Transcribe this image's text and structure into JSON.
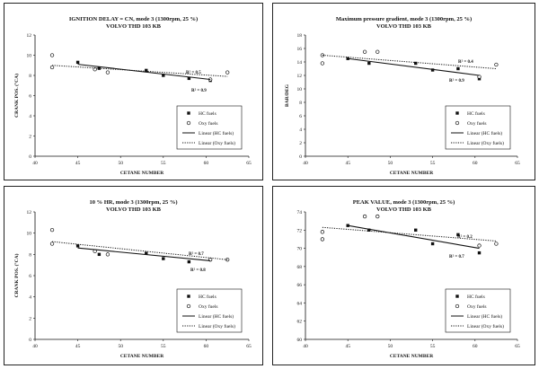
{
  "chart_data": [
    {
      "type": "scatter",
      "title": "IGNITION DELAY = CN, mode 3 (1300rpm, 25 %)",
      "subtitle": "VOLVO THD 103 KB",
      "xlabel": "CETANE NUMBER",
      "ylabel": "CRANK POS. (°CA)",
      "xlim": [
        40,
        65
      ],
      "ylim": [
        0,
        12
      ],
      "xticks": [
        "40",
        "45",
        "50",
        "55",
        "60",
        "65"
      ],
      "yticks": [
        "0",
        "2",
        "4",
        "6",
        "8",
        "10",
        "12"
      ],
      "series": [
        {
          "name": "HC fuels",
          "marker": "square",
          "x": [
            45,
            47.5,
            53,
            55,
            58,
            60.5
          ],
          "y": [
            9.3,
            8.7,
            8.5,
            8.0,
            7.7,
            7.5
          ]
        },
        {
          "name": "Oxy fuels",
          "marker": "circle",
          "x": [
            42,
            42,
            47,
            48.5,
            60.5,
            62.5
          ],
          "y": [
            10,
            8.8,
            8.6,
            8.3,
            7.6,
            8.3
          ]
        },
        {
          "name": "Linear (HC fuels)",
          "style": "solid",
          "x": [
            45,
            60.5
          ],
          "y": [
            9.1,
            7.6
          ]
        },
        {
          "name": "Linear (Oxy fuels)",
          "style": "dotted",
          "x": [
            42,
            62.5
          ],
          "y": [
            9.0,
            7.9
          ]
        }
      ],
      "annotations": [
        "R² = 0.5",
        "R² = 0.9"
      ],
      "legend": "bottom-right"
    },
    {
      "type": "scatter",
      "title": "Maximum pressure gradient, mode 3 (1300rpm, 25 %)",
      "subtitle": "VOLVO THD 103 KB",
      "xlabel": "CETANE NUMBER",
      "ylabel": "BAR/DEG",
      "xlim": [
        40,
        65
      ],
      "ylim": [
        0,
        18
      ],
      "xticks": [
        "40",
        "45",
        "50",
        "55",
        "60",
        "65"
      ],
      "yticks": [
        "0",
        "2",
        "4",
        "6",
        "8",
        "10",
        "12",
        "14",
        "16",
        "18"
      ],
      "series": [
        {
          "name": "HC fuels",
          "marker": "square",
          "x": [
            45,
            47.5,
            53,
            55,
            58,
            60.5
          ],
          "y": [
            14.5,
            13.8,
            13.8,
            12.8,
            13.0,
            11.5
          ]
        },
        {
          "name": "Oxy fuels",
          "marker": "circle",
          "x": [
            42,
            42,
            47,
            48.5,
            60.5,
            62.5
          ],
          "y": [
            15.0,
            13.8,
            15.5,
            15.5,
            11.8,
            13.6
          ]
        },
        {
          "name": "Linear (HC fuels)",
          "style": "solid",
          "x": [
            45,
            60.5
          ],
          "y": [
            14.5,
            12.0
          ]
        },
        {
          "name": "Linear (Oxy fuels)",
          "style": "dotted",
          "x": [
            42,
            62.5
          ],
          "y": [
            15.0,
            13.0
          ]
        }
      ],
      "annotations": [
        "R² = 0.4",
        "R² = 0.9"
      ],
      "legend": "bottom-right"
    },
    {
      "type": "scatter",
      "title": "10 % HR, mode 3 (1300rpm, 25 %)",
      "subtitle": "VOLVO THD 103 KB",
      "xlabel": "CETANE NUMBER",
      "ylabel": "CRANK POS. (°CA)",
      "xlim": [
        40,
        65
      ],
      "ylim": [
        0,
        12
      ],
      "xticks": [
        "40",
        "45",
        "50",
        "55",
        "60",
        "65"
      ],
      "yticks": [
        "0",
        "2",
        "4",
        "6",
        "8",
        "10",
        "12"
      ],
      "series": [
        {
          "name": "HC fuels",
          "marker": "square",
          "x": [
            45,
            47.5,
            53,
            55,
            58,
            60.5
          ],
          "y": [
            8.8,
            8.0,
            8.1,
            7.6,
            7.3,
            7.5
          ]
        },
        {
          "name": "Oxy fuels",
          "marker": "circle",
          "x": [
            42,
            42,
            47,
            48.5,
            60.5,
            62.5
          ],
          "y": [
            10.3,
            9.0,
            8.3,
            8.0,
            7.5,
            7.5
          ]
        },
        {
          "name": "Linear (HC fuels)",
          "style": "solid",
          "x": [
            45,
            60.5
          ],
          "y": [
            8.6,
            7.4
          ]
        },
        {
          "name": "Linear (Oxy fuels)",
          "style": "dotted",
          "x": [
            42,
            62.5
          ],
          "y": [
            9.2,
            7.5
          ]
        }
      ],
      "annotations": [
        "R² = 0.7",
        "R² = 0.8"
      ],
      "legend": "bottom-right"
    },
    {
      "type": "scatter",
      "title": "PEAK VALUE, mode 3 (1300rpm, 25 %)",
      "subtitle": "VOLVO THD 103 KB",
      "xlabel": "CETANE NUMBER",
      "ylabel": "",
      "xlim": [
        40,
        65
      ],
      "ylim": [
        60,
        74
      ],
      "xticks": [
        "40",
        "45",
        "50",
        "55",
        "60",
        "65"
      ],
      "yticks": [
        "60",
        "62",
        "64",
        "66",
        "68",
        "70",
        "72",
        "74"
      ],
      "series": [
        {
          "name": "HC fuels",
          "marker": "square",
          "x": [
            45,
            47.5,
            53,
            55,
            58,
            60.5
          ],
          "y": [
            72.5,
            72.0,
            72.0,
            70.5,
            71.5,
            69.5
          ]
        },
        {
          "name": "Oxy fuels",
          "marker": "circle",
          "x": [
            42,
            42,
            47,
            48.5,
            60.5,
            62.5
          ],
          "y": [
            71.8,
            71.0,
            73.5,
            73.5,
            70.3,
            70.5
          ]
        },
        {
          "name": "Linear (HC fuels)",
          "style": "solid",
          "x": [
            45,
            60.5
          ],
          "y": [
            72.5,
            70.0
          ]
        },
        {
          "name": "Linear (Oxy fuels)",
          "style": "dotted",
          "x": [
            42,
            62.5
          ],
          "y": [
            72.3,
            70.8
          ]
        }
      ],
      "annotations": [
        "R² = 0.2",
        "R² = 0.7"
      ],
      "legend": "bottom-right"
    }
  ]
}
